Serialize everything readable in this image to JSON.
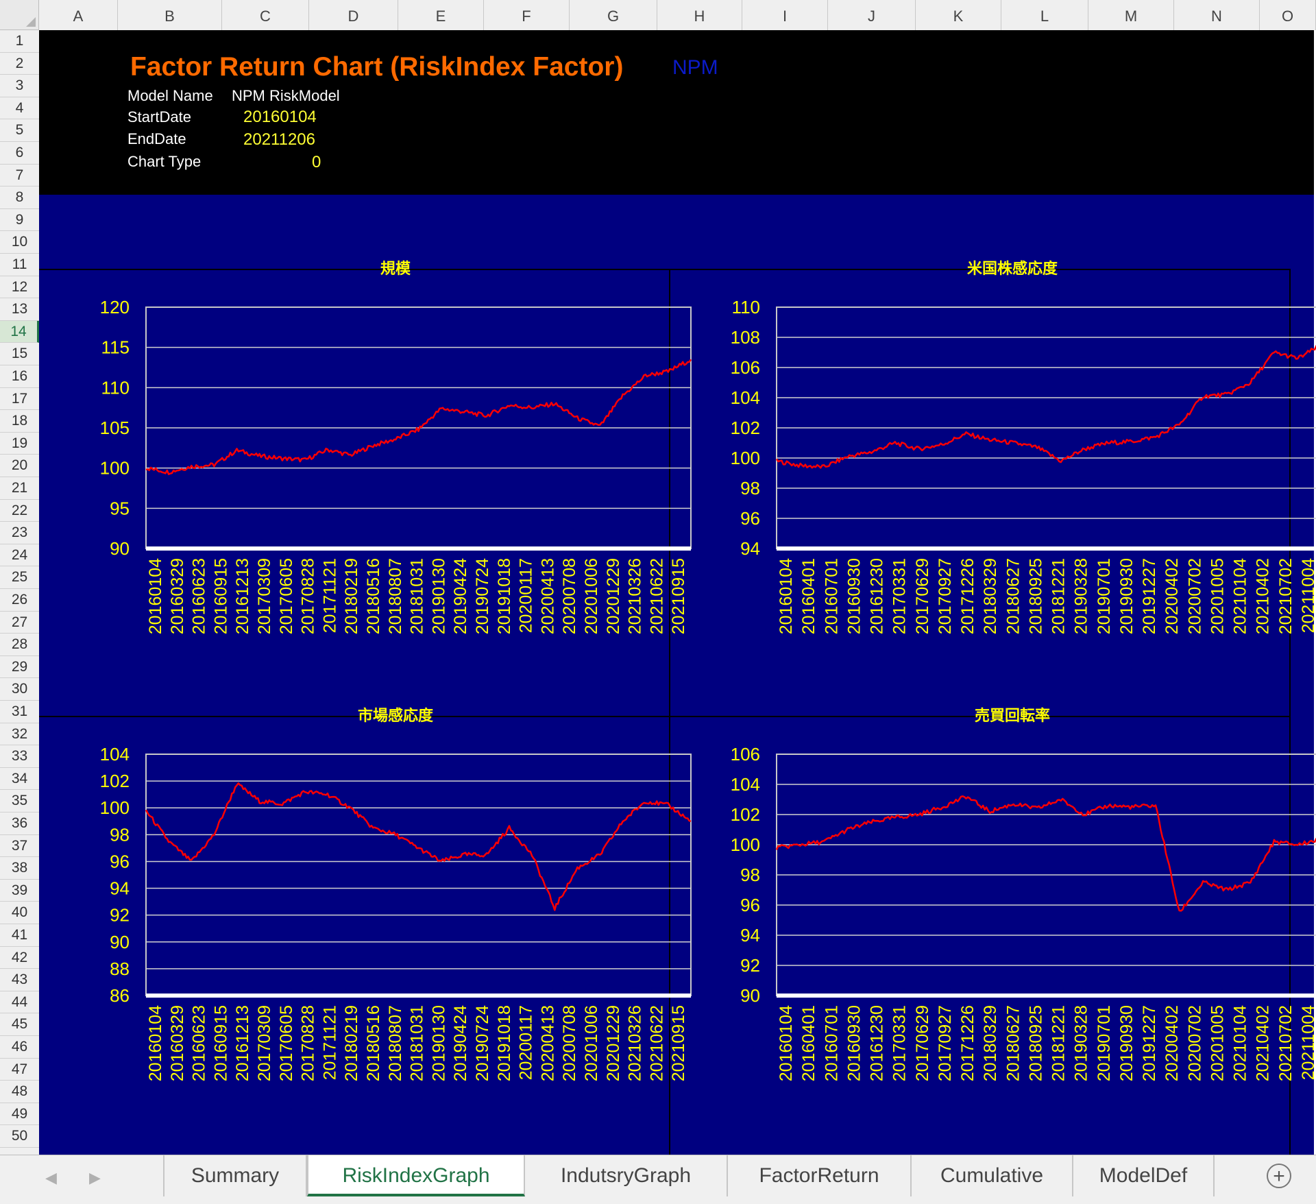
{
  "sheet": {
    "columns": [
      "A",
      "B",
      "C",
      "D",
      "E",
      "F",
      "G",
      "H",
      "I",
      "J",
      "K",
      "L",
      "M",
      "N",
      "O"
    ],
    "rows": [
      "1",
      "2",
      "3",
      "4",
      "5",
      "6",
      "7",
      "8",
      "9",
      "10",
      "11",
      "12",
      "13",
      "14",
      "15",
      "16",
      "17",
      "18",
      "19",
      "20",
      "21",
      "22",
      "23",
      "24",
      "25",
      "26",
      "27",
      "28",
      "29",
      "30",
      "31",
      "32",
      "33",
      "34",
      "35",
      "36",
      "37",
      "38",
      "39",
      "40",
      "41",
      "42",
      "43",
      "44",
      "45",
      "46",
      "47",
      "48",
      "49",
      "50"
    ],
    "active_row": "14"
  },
  "header": {
    "title": "Factor Return Chart  (RiskIndex Factor)",
    "npm": "NPM",
    "model_name_label": "Model Name",
    "model_name_value": "NPM RiskModel",
    "start_label": "StartDate",
    "start_value": "20160104",
    "end_label": "EndDate",
    "end_value": "20211206",
    "chart_type_label": "Chart Type",
    "chart_type_value": "0"
  },
  "colors": {
    "background": "#000080",
    "line": "#ff0000",
    "axis_text": "#ffff00",
    "title_text": "#ff6a00",
    "grid": "#d0d0d0",
    "plot_border": "#c8c8c8"
  },
  "tabs": {
    "nav_prev_icon": "chevron-left-icon",
    "nav_next_icon": "chevron-right-icon",
    "items": [
      "Summary",
      "RiskIndexGraph",
      "IndutsryGraph",
      "FactorReturn",
      "Cumulative",
      "ModelDef"
    ],
    "active": "RiskIndexGraph",
    "add_icon": "plus-circle-icon"
  },
  "chart_data": [
    {
      "type": "line",
      "title": "規模",
      "ylim": [
        90,
        120
      ],
      "yticks": [
        90,
        95,
        100,
        105,
        110,
        115,
        120
      ],
      "categories": [
        "20160104",
        "20160329",
        "20160623",
        "20160915",
        "20161213",
        "20170309",
        "20170605",
        "20170828",
        "20171121",
        "20180219",
        "20180516",
        "20180807",
        "20181031",
        "20190130",
        "20190424",
        "20190724",
        "20191018",
        "20200117",
        "20200413",
        "20200708",
        "20201006",
        "20201229",
        "20210326",
        "20210622",
        "20210915"
      ],
      "series": [
        {
          "values": [
            100.0,
            99.5,
            100.2,
            100.4,
            102.2,
            101.5,
            101.2,
            101.0,
            102.3,
            101.6,
            102.8,
            103.6,
            104.8,
            107.4,
            107.0,
            106.5,
            107.8,
            107.5,
            108.0,
            106.2,
            105.2,
            109.0,
            111.5,
            112.0,
            113.5
          ]
        }
      ],
      "grid": true,
      "legend": "none"
    },
    {
      "type": "line",
      "title": "米国株感応度",
      "ylim": [
        94,
        110
      ],
      "yticks": [
        94,
        96,
        98,
        100,
        102,
        104,
        106,
        108,
        110
      ],
      "categories": [
        "20160104",
        "20160401",
        "20160701",
        "20160930",
        "20161230",
        "20170331",
        "20170629",
        "20170927",
        "20171226",
        "20180329",
        "20180627",
        "20180925",
        "20181221",
        "20190328",
        "20190701",
        "20190930",
        "20191227",
        "20200402",
        "20200702",
        "20201005",
        "20210104",
        "20210402",
        "20210702",
        "20211004"
      ],
      "series": [
        {
          "values": [
            99.8,
            99.5,
            99.4,
            100.1,
            100.4,
            101.0,
            100.6,
            100.9,
            101.6,
            101.2,
            101.0,
            100.7,
            99.8,
            100.6,
            101.0,
            101.1,
            101.4,
            102.2,
            104.1,
            104.2,
            105.0,
            107.0,
            106.6,
            107.5
          ]
        }
      ],
      "grid": true,
      "legend": "none"
    },
    {
      "type": "line",
      "title": "市場感応度",
      "ylim": [
        86,
        104
      ],
      "yticks": [
        86,
        88,
        90,
        92,
        94,
        96,
        98,
        100,
        102,
        104
      ],
      "categories": [
        "20160104",
        "20160329",
        "20160623",
        "20160915",
        "20161213",
        "20170309",
        "20170605",
        "20170828",
        "20171121",
        "20180219",
        "20180516",
        "20180807",
        "20181031",
        "20190130",
        "20190424",
        "20190724",
        "20191018",
        "20200117",
        "20200413",
        "20200708",
        "20201006",
        "20201229",
        "20210326",
        "20210622",
        "20210915"
      ],
      "series": [
        {
          "values": [
            99.8,
            97.5,
            96.0,
            98.0,
            101.8,
            100.5,
            100.3,
            101.2,
            101.0,
            100.0,
            98.5,
            98.0,
            97.0,
            96.0,
            96.5,
            96.5,
            98.5,
            96.5,
            92.5,
            95.5,
            96.5,
            99.0,
            100.5,
            100.2,
            99.0
          ]
        }
      ],
      "grid": true,
      "legend": "none"
    },
    {
      "type": "line",
      "title": "売買回転率",
      "ylim": [
        90,
        106
      ],
      "yticks": [
        90,
        92,
        94,
        96,
        98,
        100,
        102,
        104,
        106
      ],
      "categories": [
        "20160104",
        "20160401",
        "20160701",
        "20160930",
        "20161230",
        "20170331",
        "20170629",
        "20170927",
        "20171226",
        "20180329",
        "20180627",
        "20180925",
        "20181221",
        "20190328",
        "20190701",
        "20190930",
        "20191227",
        "20200402",
        "20200702",
        "20201005",
        "20210104",
        "20210402",
        "20210702",
        "20211004"
      ],
      "series": [
        {
          "values": [
            99.8,
            100.0,
            100.2,
            101.0,
            101.5,
            101.8,
            102.0,
            102.5,
            103.2,
            102.2,
            102.7,
            102.4,
            103.0,
            102.0,
            102.6,
            102.5,
            102.6,
            95.5,
            97.5,
            97.0,
            97.5,
            100.2,
            100.0,
            100.4
          ]
        }
      ],
      "grid": true,
      "legend": "none"
    }
  ]
}
